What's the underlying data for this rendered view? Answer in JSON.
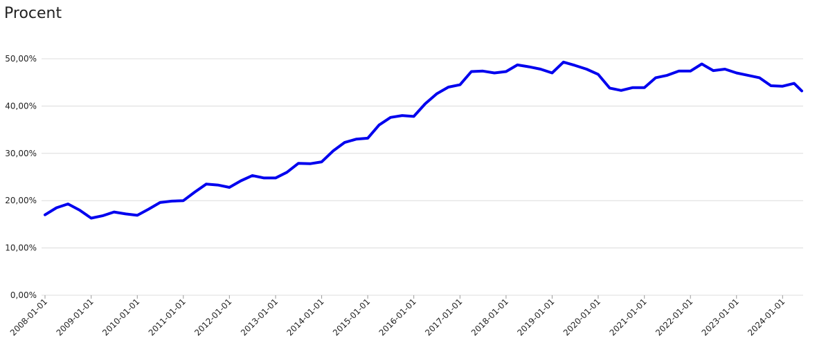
{
  "chart_data": {
    "type": "line",
    "title": "Procent",
    "x": [
      "2008-01-01",
      "2008-04-01",
      "2008-07-01",
      "2008-10-01",
      "2009-01-01",
      "2009-04-01",
      "2009-07-01",
      "2009-10-01",
      "2010-01-01",
      "2010-04-01",
      "2010-07-01",
      "2010-10-01",
      "2011-01-01",
      "2011-04-01",
      "2011-07-01",
      "2011-10-01",
      "2012-01-01",
      "2012-04-01",
      "2012-07-01",
      "2012-10-01",
      "2013-01-01",
      "2013-04-01",
      "2013-07-01",
      "2013-10-01",
      "2014-01-01",
      "2014-04-01",
      "2014-07-01",
      "2014-10-01",
      "2015-01-01",
      "2015-04-01",
      "2015-07-01",
      "2015-10-01",
      "2016-01-01",
      "2016-04-01",
      "2016-07-01",
      "2016-10-01",
      "2017-01-01",
      "2017-04-01",
      "2017-07-01",
      "2017-10-01",
      "2018-01-01",
      "2018-04-01",
      "2018-07-01",
      "2018-10-01",
      "2019-01-01",
      "2019-04-01",
      "2019-07-01",
      "2019-10-01",
      "2020-01-01",
      "2020-04-01",
      "2020-07-01",
      "2020-10-01",
      "2021-01-01",
      "2021-04-01",
      "2021-07-01",
      "2021-10-01",
      "2022-01-01",
      "2022-04-01",
      "2022-07-01",
      "2022-10-01",
      "2023-01-01",
      "2023-04-01",
      "2023-07-01",
      "2023-10-01",
      "2024-01-01",
      "2024-04-01",
      "2024-06-01"
    ],
    "values": [
      17.0,
      18.5,
      19.3,
      18.0,
      16.3,
      16.8,
      17.6,
      17.2,
      16.9,
      18.2,
      19.6,
      19.9,
      20.0,
      21.8,
      23.5,
      23.3,
      22.8,
      24.2,
      25.3,
      24.8,
      24.8,
      26.0,
      27.9,
      27.8,
      28.2,
      30.5,
      32.3,
      33.0,
      33.2,
      36.0,
      37.6,
      38.0,
      37.8,
      40.5,
      42.6,
      44.0,
      44.5,
      47.3,
      47.4,
      47.0,
      47.3,
      48.7,
      48.3,
      47.8,
      47.0,
      49.3,
      48.6,
      47.8,
      46.7,
      43.8,
      43.3,
      43.9,
      43.9,
      46.0,
      46.5,
      47.4,
      47.4,
      48.9,
      47.5,
      47.8,
      47.0,
      46.5,
      46.0,
      44.3,
      44.2,
      44.8,
      43.2
    ],
    "color": "#0000ee",
    "xlim": [
      "2008-01-01",
      "2024-06-01"
    ],
    "xticks": [
      "2008-01-01",
      "2009-01-01",
      "2010-01-01",
      "2011-01-01",
      "2012-01-01",
      "2013-01-01",
      "2014-01-01",
      "2015-01-01",
      "2016-01-01",
      "2017-01-01",
      "2018-01-01",
      "2019-01-01",
      "2020-01-01",
      "2021-01-01",
      "2022-01-01",
      "2023-01-01",
      "2024-01-01"
    ],
    "ylim": [
      0,
      50
    ],
    "yticks": [
      {
        "value": 0,
        "label": "0,00%"
      },
      {
        "value": 10,
        "label": "10,00%"
      },
      {
        "value": 20,
        "label": "20,00%"
      },
      {
        "value": 30,
        "label": "30,00%"
      },
      {
        "value": 40,
        "label": "40,00%"
      },
      {
        "value": 50,
        "label": "50,00%"
      }
    ],
    "grid": true
  }
}
